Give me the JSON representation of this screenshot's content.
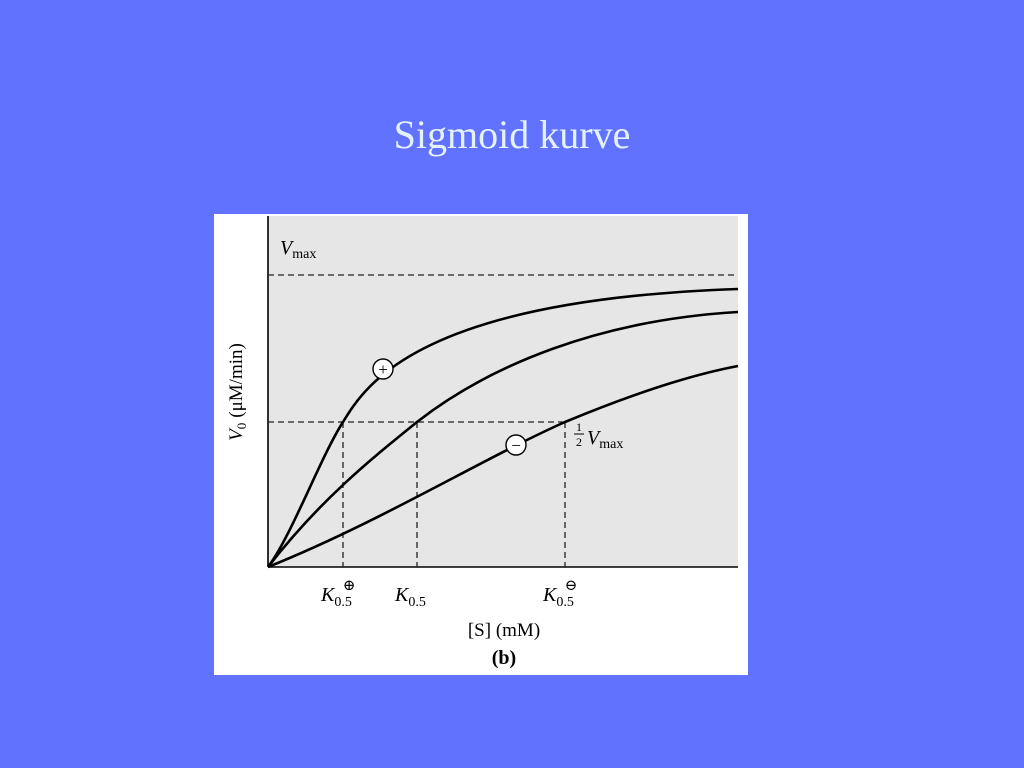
{
  "title": "Sigmoid kurve",
  "figure": {
    "vmax_label": {
      "symbol": "V",
      "subscript": "max"
    },
    "half_vmax_label": {
      "numerator": "1",
      "denominator": "2",
      "symbol": "V",
      "subscript": "max"
    },
    "curve_markers": [
      "+",
      "−"
    ],
    "x_tick_labels": [
      {
        "symbol": "K",
        "subscript": "0.5",
        "superscript": "⊕"
      },
      {
        "symbol": "K",
        "subscript": "0.5"
      },
      {
        "symbol": "K",
        "subscript": "0.5",
        "superscript": "⊖"
      }
    ],
    "y_axis_label": {
      "symbol": "V",
      "subscript": "0",
      "unit": "(μM/min)"
    },
    "x_axis_label": "[S] (mM)",
    "panel_label": "(b)"
  }
}
